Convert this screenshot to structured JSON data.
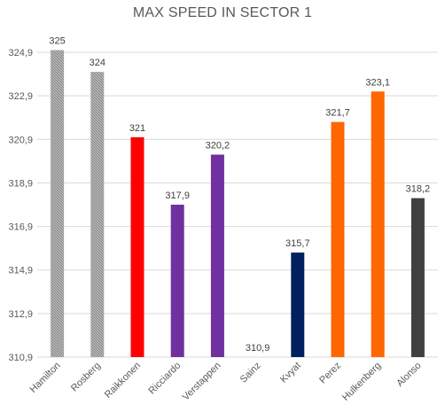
{
  "chart_data": {
    "type": "bar",
    "title": "MAX SPEED IN SECTOR 1",
    "xlabel": "",
    "ylabel": "",
    "ylim": [
      310.9,
      326.0
    ],
    "yticks": [
      "310,9",
      "312,9",
      "314,9",
      "316,9",
      "318,9",
      "320,9",
      "322,9",
      "324,9"
    ],
    "ytick_values": [
      310.9,
      312.9,
      314.9,
      316.9,
      318.9,
      320.9,
      322.9,
      324.9
    ],
    "grid": true,
    "legend": "none",
    "categories": [
      "Hamilton",
      "Rosberg",
      "Raikkonen",
      "Ricciardo",
      "Verstappen",
      "Sainz",
      "Kvyat",
      "Perez",
      "Hulkenberg",
      "Alonso"
    ],
    "values": [
      325,
      324,
      321,
      317.9,
      320.2,
      310.9,
      315.7,
      321.7,
      323.1,
      318.2
    ],
    "labels": [
      "325",
      "324",
      "321",
      "317,9",
      "320,2",
      "310,9",
      "315,7",
      "321,7",
      "323,1",
      "318,2"
    ],
    "colors": [
      "#808080",
      "#808080",
      "#ff0000",
      "#7030a0",
      "#7030a0",
      "#7030a0",
      "#002060",
      "#ff6600",
      "#ff6600",
      "#404040"
    ],
    "patterns": [
      "hatched",
      "hatched",
      "solid",
      "solid",
      "solid",
      "solid",
      "solid",
      "solid",
      "solid",
      "solid"
    ]
  }
}
